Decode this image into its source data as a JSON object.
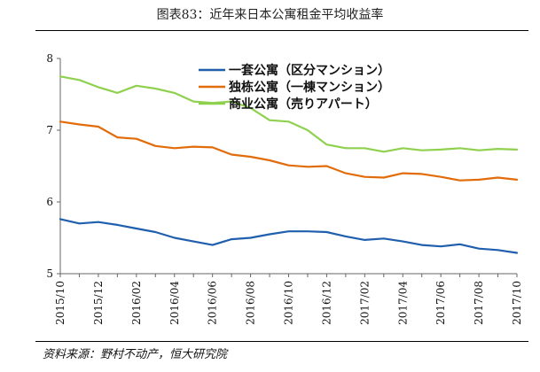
{
  "figure": {
    "title": "图表83：近年来日本公寓租金平均收益率",
    "source": "资料来源：野村不动产，恒大研究院"
  },
  "chart_data": {
    "type": "line",
    "title": "图表83：近年来日本公寓租金平均收益率",
    "xlabel": "",
    "ylabel": "",
    "ylim": [
      5,
      8
    ],
    "yticks": [
      "5",
      "6",
      "7",
      "8"
    ],
    "x": [
      "2015/10",
      "2015/11",
      "2015/12",
      "2016/01",
      "2016/02",
      "2016/03",
      "2016/04",
      "2016/05",
      "2016/06",
      "2016/07",
      "2016/08",
      "2016/09",
      "2016/10",
      "2016/11",
      "2016/12",
      "2017/01",
      "2017/02",
      "2017/03",
      "2017/04",
      "2017/05",
      "2017/06",
      "2017/07",
      "2017/08",
      "2017/09",
      "2017/10"
    ],
    "xtick_labels": [
      "2015/10",
      "2015/12",
      "2016/02",
      "2016/04",
      "2016/06",
      "2016/08",
      "2016/10",
      "2016/12",
      "2017/02",
      "2017/04",
      "2017/06",
      "2017/08",
      "2017/10"
    ],
    "legend_position": "top-left",
    "series": [
      {
        "name": "一套公寓（区分マンション）",
        "color": "#1f5fae",
        "values": [
          5.76,
          5.7,
          5.72,
          5.68,
          5.63,
          5.58,
          5.5,
          5.45,
          5.4,
          5.48,
          5.5,
          5.55,
          5.59,
          5.59,
          5.58,
          5.52,
          5.47,
          5.49,
          5.45,
          5.4,
          5.38,
          5.41,
          5.35,
          5.33,
          5.29
        ]
      },
      {
        "name": "独栋公寓（一棟マンション）",
        "color": "#e26b0a",
        "values": [
          7.12,
          7.08,
          7.05,
          6.9,
          6.88,
          6.78,
          6.75,
          6.77,
          6.76,
          6.66,
          6.63,
          6.58,
          6.51,
          6.49,
          6.5,
          6.4,
          6.35,
          6.34,
          6.4,
          6.39,
          6.35,
          6.3,
          6.31,
          6.34,
          6.31
        ]
      },
      {
        "name": "商业公寓（売りアパート）",
        "color": "#8fd14f",
        "values": [
          7.75,
          7.7,
          7.6,
          7.52,
          7.62,
          7.58,
          7.52,
          7.4,
          7.38,
          7.4,
          7.31,
          7.14,
          7.12,
          7.0,
          6.8,
          6.75,
          6.75,
          6.7,
          6.75,
          6.72,
          6.73,
          6.75,
          6.72,
          6.74,
          6.73
        ]
      }
    ]
  }
}
